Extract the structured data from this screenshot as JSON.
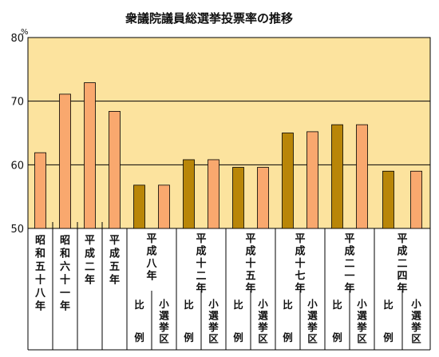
{
  "chart_data": {
    "type": "bar",
    "title": "衆議院議員総選挙投票率の推移",
    "ylabel": "%",
    "ylim": [
      50,
      80
    ],
    "yticks": [
      "50",
      "60",
      "70",
      "80"
    ],
    "grid": true,
    "colors": {
      "plot_bg": "#FCE39E",
      "single_bar": "#F9A86E",
      "proportional_bar": "#B98608",
      "district_bar": "#F9A86E"
    },
    "sub_labels": {
      "proportional": [
        "比",
        "例"
      ],
      "district": "小選挙区"
    },
    "categories": [
      {
        "label": "昭和五十八年",
        "values": [
          {
            "kind": "single",
            "value": 61.9
          }
        ]
      },
      {
        "label": "昭和六十一年",
        "values": [
          {
            "kind": "single",
            "value": 71.1
          }
        ]
      },
      {
        "label": "平成二年",
        "values": [
          {
            "kind": "single",
            "value": 72.9
          }
        ]
      },
      {
        "label": "平成五年",
        "values": [
          {
            "kind": "single",
            "value": 68.4
          }
        ]
      },
      {
        "label": "平成八年",
        "values": [
          {
            "kind": "proportional",
            "value": 56.8
          },
          {
            "kind": "district",
            "value": 56.8
          }
        ]
      },
      {
        "label": "平成十二年",
        "values": [
          {
            "kind": "proportional",
            "value": 60.8
          },
          {
            "kind": "district",
            "value": 60.8
          }
        ]
      },
      {
        "label": "平成十五年",
        "values": [
          {
            "kind": "proportional",
            "value": 59.6
          },
          {
            "kind": "district",
            "value": 59.6
          }
        ]
      },
      {
        "label": "平成十七年",
        "values": [
          {
            "kind": "proportional",
            "value": 65.0
          },
          {
            "kind": "district",
            "value": 65.2
          }
        ]
      },
      {
        "label": "平成二一年",
        "values": [
          {
            "kind": "proportional",
            "value": 66.3
          },
          {
            "kind": "district",
            "value": 66.3
          }
        ]
      },
      {
        "label": "平成二四年",
        "values": [
          {
            "kind": "proportional",
            "value": 59.0
          },
          {
            "kind": "district",
            "value": 59.0
          }
        ]
      }
    ]
  }
}
